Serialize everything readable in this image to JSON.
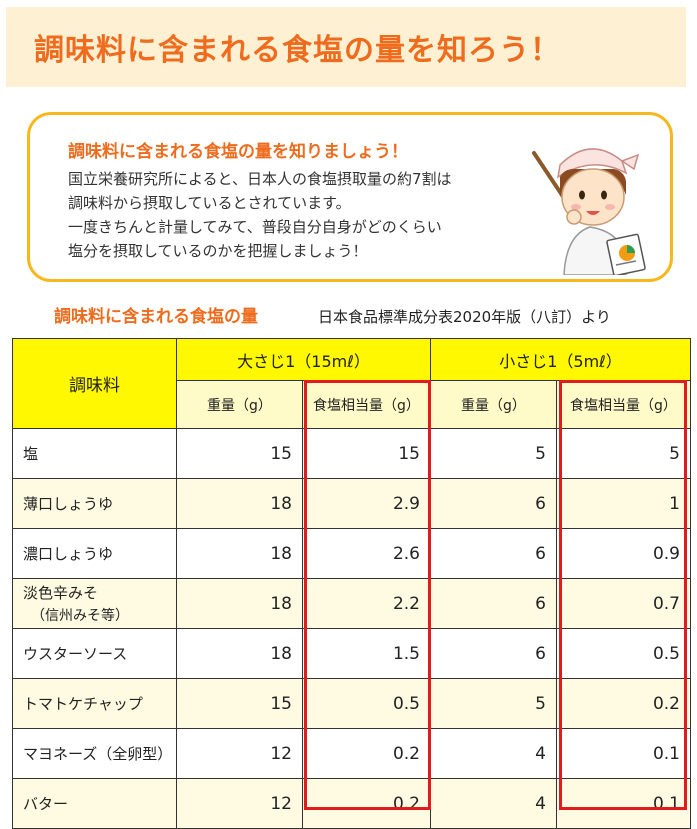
{
  "banner": {
    "title": "調味料に含まれる食塩の量を知ろう！"
  },
  "info": {
    "heading": "調味料に含まれる食塩の量を知りましょう！",
    "lines": [
      "国立栄養研究所によると、日本人の食塩摂取量の約7割は",
      "調味料から摂取しているとされています。",
      "一度きちんと計量してみて、普段自分自身がどのくらい",
      "塩分を摂取しているのかを把握しましょう！"
    ]
  },
  "section": {
    "heading": "調味料に含まれる食塩の量",
    "source": "日本食品標準成分表2020年版（八訂）より"
  },
  "table": {
    "item_header": "調味料",
    "groups": [
      "大さじ1（15mℓ）",
      "小さじ1（5mℓ）"
    ],
    "subheaders": [
      "重量（g）",
      "食塩相当量（g）",
      "重量（g）",
      "食塩相当量（g）"
    ],
    "rows": [
      {
        "name": "塩",
        "name2": "",
        "values": [
          "15",
          "15",
          "5",
          "5"
        ]
      },
      {
        "name": "薄口しょうゆ",
        "name2": "",
        "values": [
          "18",
          "2.9",
          "6",
          "1"
        ]
      },
      {
        "name": "濃口しょうゆ",
        "name2": "",
        "values": [
          "18",
          "2.6",
          "6",
          "0.9"
        ]
      },
      {
        "name": "淡色辛みそ",
        "name2": "（信州みそ等）",
        "values": [
          "18",
          "2.2",
          "6",
          "0.7"
        ]
      },
      {
        "name": "ウスターソース",
        "name2": "",
        "values": [
          "18",
          "1.5",
          "6",
          "0.5"
        ]
      },
      {
        "name": "トマトケチャップ",
        "name2": "",
        "values": [
          "15",
          "0.5",
          "5",
          "0.2"
        ]
      },
      {
        "name": "マヨネーズ（全卵型）",
        "name2": "",
        "values": [
          "12",
          "0.2",
          "4",
          "0.1"
        ]
      },
      {
        "name": "バター",
        "name2": "",
        "values": [
          "12",
          "0.2",
          "4",
          "0.1"
        ]
      }
    ]
  },
  "colors": {
    "accent": "#ef6c1e",
    "banner_bg": "#fdf0d3",
    "box_border": "#f6b81c",
    "header_yellow": "#fff800",
    "highlight_red": "#e21c1c"
  },
  "icons": {
    "illustration": "teacher-with-pointer-and-chart-illustration"
  }
}
